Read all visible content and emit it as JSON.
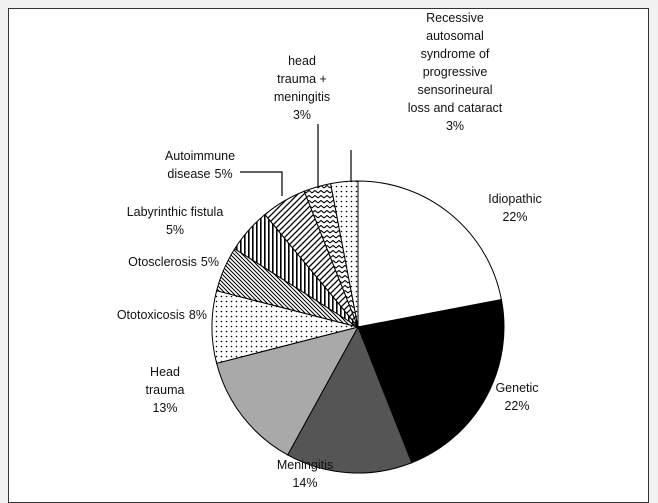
{
  "chart_data": {
    "type": "pie",
    "categories": [
      "Idiopathic",
      "Genetic",
      "Meningitis",
      "Head\ntrauma",
      "Ototoxicosis",
      "Otosclerosis",
      "Labyrinthic fistula",
      "Autoimmune\ndisease",
      "head\ntrauma +\nmeningitis",
      "Recessive\nautosomal\nsyndrome of\nprogressive\nsensorineural\nloss and  cataract"
    ],
    "values": [
      22,
      22,
      14,
      13,
      8,
      5,
      5,
      5,
      3,
      3
    ],
    "value_labels": [
      "22%",
      "22%",
      "14%",
      "13%",
      "8%",
      "5%",
      "5%",
      "5%",
      "3%",
      "3%"
    ],
    "colors": [
      "#ffffff",
      "#000000",
      "#555555",
      "#a9a9a9",
      "dots",
      "hatch",
      "vstripe",
      "diag",
      "zigzag",
      "dots"
    ]
  }
}
